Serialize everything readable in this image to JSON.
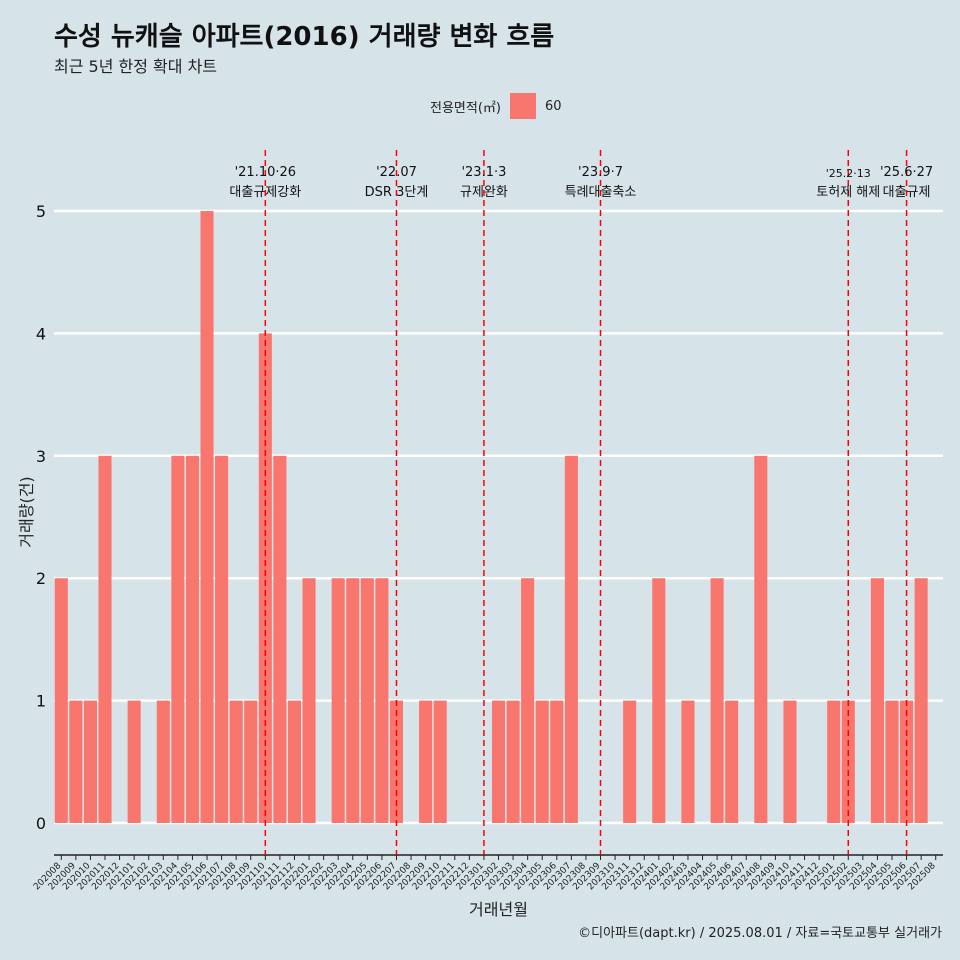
{
  "header": {
    "title": "수성 뉴캐슬 아파트(2016) 거래량 변화 흐름",
    "subtitle": "최근 5년 한정 확대 차트"
  },
  "legend": {
    "title": "전용면적(㎡)",
    "items": [
      {
        "label": "60",
        "color": "#f8766d"
      }
    ]
  },
  "footer": {
    "credit": "©디아파트(dapt.kr) / 2025.08.01 / 자료=국토교통부 실거래가"
  },
  "colors": {
    "background": "#d6e4ea",
    "bar": "#f8766d",
    "annotation": "#ff0000",
    "grid": "#ffffff"
  },
  "chart_data": {
    "type": "bar",
    "xlabel": "거래년월",
    "ylabel": "거래량(건)",
    "ylim": [
      0,
      5
    ],
    "yticks": [
      0,
      1,
      2,
      3,
      4,
      5
    ],
    "grid": true,
    "legend_position": "top",
    "categories": [
      "202008",
      "202009",
      "202010",
      "202011",
      "202012",
      "202101",
      "202102",
      "202103",
      "202104",
      "202105",
      "202106",
      "202107",
      "202108",
      "202109",
      "202110",
      "202111",
      "202112",
      "202201",
      "202202",
      "202203",
      "202204",
      "202205",
      "202206",
      "202207",
      "202208",
      "202209",
      "202210",
      "202211",
      "202212",
      "202301",
      "202302",
      "202303",
      "202304",
      "202305",
      "202306",
      "202307",
      "202308",
      "202309",
      "202310",
      "202311",
      "202312",
      "202401",
      "202402",
      "202403",
      "202404",
      "202405",
      "202406",
      "202407",
      "202408",
      "202409",
      "202410",
      "202411",
      "202412",
      "202501",
      "202502",
      "202503",
      "202504",
      "202505",
      "202506",
      "202507",
      "202508"
    ],
    "series": [
      {
        "name": "60",
        "values": [
          2,
          1,
          1,
          3,
          0,
          1,
          0,
          1,
          3,
          3,
          5,
          3,
          1,
          1,
          4,
          3,
          1,
          2,
          0,
          2,
          2,
          2,
          2,
          1,
          0,
          1,
          1,
          0,
          0,
          0,
          1,
          1,
          2,
          1,
          1,
          3,
          0,
          0,
          0,
          1,
          0,
          2,
          0,
          1,
          0,
          2,
          1,
          0,
          3,
          0,
          1,
          0,
          0,
          1,
          1,
          0,
          2,
          1,
          1,
          2,
          0
        ]
      }
    ],
    "annotations": [
      {
        "x": "202110",
        "date_label": "'21.10·26",
        "label": "대출규제강화"
      },
      {
        "x": "202207",
        "date_label": "'22.07",
        "label": "DSR 3단계"
      },
      {
        "x": "202301",
        "date_label": "'23.1·3",
        "label": "규제완화"
      },
      {
        "x": "202309",
        "date_label": "'23.9·7",
        "label": "특례대출축소"
      },
      {
        "x": "202502",
        "date_label": "'25.2·13",
        "label": "토허제 해제"
      },
      {
        "x": "202506",
        "date_label": "'25.6·27",
        "label": "대출규제"
      }
    ]
  }
}
